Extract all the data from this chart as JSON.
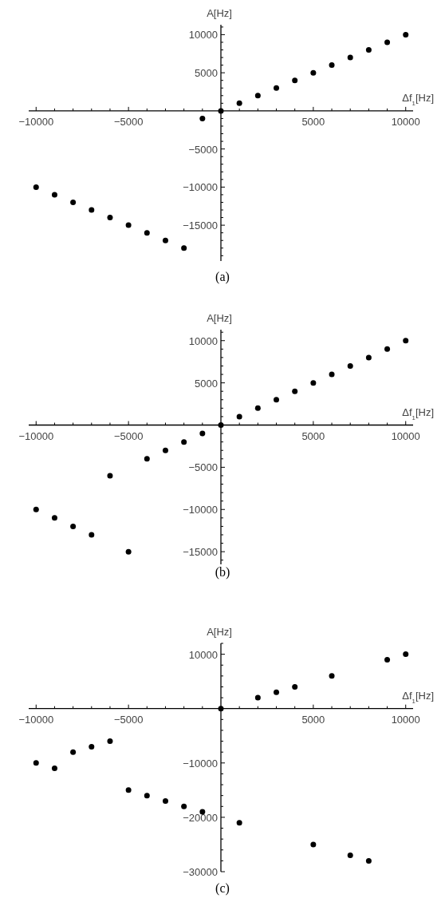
{
  "chart_data": [
    {
      "type": "scatter",
      "xlabel": "Δf$_{1}$[Hz]",
      "ylabel": "A[Hz]",
      "annotations": [
        "(a)"
      ],
      "marker": "circle",
      "color": "#000000",
      "x": [
        -10000,
        -9000,
        -8000,
        -7000,
        -6000,
        -5000,
        -4000,
        -3000,
        -2000,
        -1000,
        0,
        1000,
        2000,
        3000,
        4000,
        5000,
        6000,
        7000,
        8000,
        9000,
        10000
      ],
      "values": [
        -10000,
        -11000,
        -12000,
        -13000,
        -14000,
        -15000,
        -16000,
        -17000,
        -18000,
        -1000,
        0,
        1000,
        2000,
        3000,
        4000,
        5000,
        6000,
        7000,
        8000,
        9000,
        10000
      ],
      "xlim": [
        -10400,
        10400
      ],
      "ylim": [
        -19700,
        11300
      ],
      "xticks": [
        -10000,
        {
          "value": -9000,
          "label": null
        },
        {
          "value": -8000,
          "label": null
        },
        {
          "value": -7000,
          "label": null
        },
        {
          "value": -6000,
          "label": null
        },
        -5000,
        {
          "value": -4000,
          "label": null
        },
        {
          "value": -3000,
          "label": null
        },
        {
          "value": -2000,
          "label": null
        },
        {
          "value": -1000,
          "label": null
        },
        {
          "value": 1000,
          "label": null
        },
        {
          "value": 2000,
          "label": null
        },
        {
          "value": 3000,
          "label": null
        },
        {
          "value": 4000,
          "label": null
        },
        5000,
        {
          "value": 6000,
          "label": null
        },
        {
          "value": 7000,
          "label": null
        },
        {
          "value": 8000,
          "label": null
        },
        {
          "value": 9000,
          "label": null
        },
        10000
      ],
      "yticks": [
        {
          "value": -19000,
          "label": null
        },
        {
          "value": -18000,
          "label": null
        },
        {
          "value": -17000,
          "label": null
        },
        {
          "value": -16000,
          "label": null
        },
        -15000,
        {
          "value": -14000,
          "label": null
        },
        {
          "value": -13000,
          "label": null
        },
        {
          "value": -12000,
          "label": null
        },
        {
          "value": -11000,
          "label": null
        },
        -10000,
        {
          "value": -9000,
          "label": null
        },
        {
          "value": -8000,
          "label": null
        },
        {
          "value": -7000,
          "label": null
        },
        {
          "value": -6000,
          "label": null
        },
        -5000,
        {
          "value": -4000,
          "label": null
        },
        {
          "value": -3000,
          "label": null
        },
        {
          "value": -2000,
          "label": null
        },
        {
          "value": -1000,
          "label": null
        },
        {
          "value": 1000,
          "label": null
        },
        {
          "value": 2000,
          "label": null
        },
        {
          "value": 3000,
          "label": null
        },
        {
          "value": 4000,
          "label": null
        },
        5000,
        {
          "value": 6000,
          "label": null
        },
        {
          "value": 7000,
          "label": null
        },
        {
          "value": 8000,
          "label": null
        },
        {
          "value": 9000,
          "label": null
        },
        10000,
        {
          "value": 11000,
          "label": null
        }
      ]
    },
    {
      "type": "scatter",
      "xlabel": "Δf$_{1}$[Hz]",
      "ylabel": "A[Hz]",
      "annotations": [
        "(b)"
      ],
      "marker": "circle",
      "color": "#000000",
      "x": [
        -10000,
        -9000,
        -8000,
        -7000,
        -6000,
        -5000,
        -4000,
        -3000,
        -2000,
        -1000,
        0,
        1000,
        2000,
        3000,
        4000,
        5000,
        6000,
        7000,
        8000,
        9000,
        10000
      ],
      "values": [
        -10000,
        -11000,
        -12000,
        -13000,
        -6000,
        -15000,
        -4000,
        -3000,
        -2000,
        -1000,
        0,
        1000,
        2000,
        3000,
        4000,
        5000,
        6000,
        7000,
        8000,
        9000,
        10000
      ],
      "xlim": [
        -10400,
        10400
      ],
      "ylim": [
        -16500,
        11300
      ],
      "xticks": [
        -10000,
        {
          "value": -9000,
          "label": null
        },
        {
          "value": -8000,
          "label": null
        },
        {
          "value": -7000,
          "label": null
        },
        {
          "value": -6000,
          "label": null
        },
        -5000,
        {
          "value": -4000,
          "label": null
        },
        {
          "value": -3000,
          "label": null
        },
        {
          "value": -2000,
          "label": null
        },
        {
          "value": -1000,
          "label": null
        },
        {
          "value": 1000,
          "label": null
        },
        {
          "value": 2000,
          "label": null
        },
        {
          "value": 3000,
          "label": null
        },
        {
          "value": 4000,
          "label": null
        },
        5000,
        {
          "value": 6000,
          "label": null
        },
        {
          "value": 7000,
          "label": null
        },
        {
          "value": 8000,
          "label": null
        },
        {
          "value": 9000,
          "label": null
        },
        10000
      ],
      "yticks": [
        {
          "value": -16000,
          "label": null
        },
        -15000,
        {
          "value": -14000,
          "label": null
        },
        {
          "value": -13000,
          "label": null
        },
        {
          "value": -12000,
          "label": null
        },
        {
          "value": -11000,
          "label": null
        },
        -10000,
        {
          "value": -9000,
          "label": null
        },
        {
          "value": -8000,
          "label": null
        },
        {
          "value": -7000,
          "label": null
        },
        {
          "value": -6000,
          "label": null
        },
        -5000,
        {
          "value": -4000,
          "label": null
        },
        {
          "value": -3000,
          "label": null
        },
        {
          "value": -2000,
          "label": null
        },
        {
          "value": -1000,
          "label": null
        },
        {
          "value": 1000,
          "label": null
        },
        {
          "value": 2000,
          "label": null
        },
        {
          "value": 3000,
          "label": null
        },
        {
          "value": 4000,
          "label": null
        },
        5000,
        {
          "value": 6000,
          "label": null
        },
        {
          "value": 7000,
          "label": null
        },
        {
          "value": 8000,
          "label": null
        },
        {
          "value": 9000,
          "label": null
        },
        10000,
        {
          "value": 11000,
          "label": null
        }
      ]
    },
    {
      "type": "scatter",
      "xlabel": "Δf$_{1}$[Hz]",
      "ylabel": "A[Hz]",
      "annotations": [
        "(c)"
      ],
      "marker": "circle",
      "color": "#000000",
      "x": [
        -10000,
        -9000,
        -8000,
        -7000,
        -6000,
        -5000,
        -4000,
        -3000,
        -2000,
        -1000,
        0,
        1000,
        2000,
        3000,
        4000,
        5000,
        6000,
        7000,
        8000,
        9000,
        10000
      ],
      "values": [
        -10000,
        -11000,
        -8000,
        -7000,
        -6000,
        -15000,
        -16000,
        -17000,
        -18000,
        -19000,
        0,
        -21000,
        2000,
        3000,
        4000,
        -25000,
        6000,
        -27000,
        -28000,
        9000,
        10000
      ],
      "xlim": [
        -10400,
        10400
      ],
      "ylim": [
        -30000,
        12000
      ],
      "xticks": [
        -10000,
        {
          "value": -9000,
          "label": null
        },
        {
          "value": -8000,
          "label": null
        },
        {
          "value": -7000,
          "label": null
        },
        {
          "value": -6000,
          "label": null
        },
        -5000,
        {
          "value": -4000,
          "label": null
        },
        {
          "value": -3000,
          "label": null
        },
        {
          "value": -2000,
          "label": null
        },
        {
          "value": -1000,
          "label": null
        },
        {
          "value": 1000,
          "label": null
        },
        {
          "value": 2000,
          "label": null
        },
        {
          "value": 3000,
          "label": null
        },
        {
          "value": 4000,
          "label": null
        },
        5000,
        {
          "value": 6000,
          "label": null
        },
        {
          "value": 7000,
          "label": null
        },
        {
          "value": 8000,
          "label": null
        },
        {
          "value": 9000,
          "label": null
        },
        10000
      ],
      "yticks": [
        -30000,
        {
          "value": -28000,
          "label": null
        },
        {
          "value": -26000,
          "label": null
        },
        {
          "value": -24000,
          "label": null
        },
        {
          "value": -22000,
          "label": null
        },
        -20000,
        {
          "value": -18000,
          "label": null
        },
        {
          "value": -16000,
          "label": null
        },
        {
          "value": -14000,
          "label": null
        },
        {
          "value": -12000,
          "label": null
        },
        -10000,
        {
          "value": -8000,
          "label": null
        },
        {
          "value": -6000,
          "label": null
        },
        {
          "value": -4000,
          "label": null
        },
        {
          "value": -2000,
          "label": null
        },
        {
          "value": 2000,
          "label": null
        },
        {
          "value": 4000,
          "label": null
        },
        {
          "value": 6000,
          "label": null
        },
        {
          "value": 8000,
          "label": null
        },
        10000,
        {
          "value": 12000,
          "label": null
        }
      ]
    }
  ]
}
